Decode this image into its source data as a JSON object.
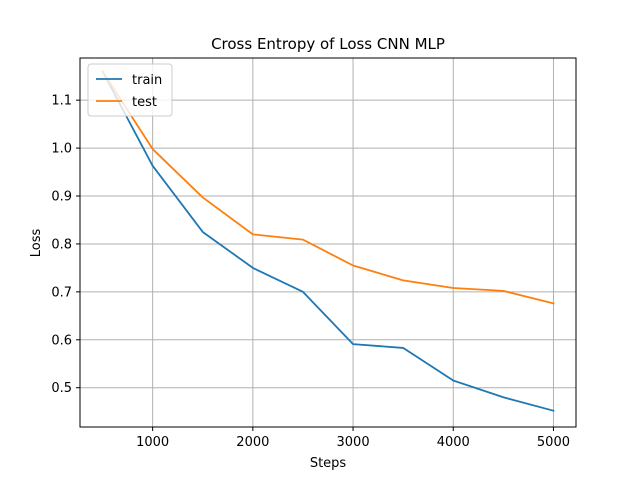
{
  "chart_data": {
    "type": "line",
    "title": "Cross Entropy of Loss CNN MLP",
    "xlabel": "Steps",
    "ylabel": "Loss",
    "x": [
      500,
      1000,
      1500,
      2000,
      2500,
      3000,
      3500,
      4000,
      4500,
      5000
    ],
    "xlim": [
      275,
      5225
    ],
    "ylim": [
      0.418,
      1.188
    ],
    "xticks": [
      {
        "value": 1000,
        "label": "1000"
      },
      {
        "value": 2000,
        "label": "2000"
      },
      {
        "value": 3000,
        "label": "3000"
      },
      {
        "value": 4000,
        "label": "4000"
      },
      {
        "value": 5000,
        "label": "5000"
      }
    ],
    "yticks": [
      {
        "value": 0.5,
        "label": "0.5"
      },
      {
        "value": 0.6,
        "label": "0.6"
      },
      {
        "value": 0.7,
        "label": "0.7"
      },
      {
        "value": 0.8,
        "label": "0.8"
      },
      {
        "value": 0.9,
        "label": "0.9"
      },
      {
        "value": 1.0,
        "label": "1.0"
      },
      {
        "value": 1.1,
        "label": "1.1"
      }
    ],
    "grid": true,
    "legend_position": "top-left",
    "series": [
      {
        "name": "train",
        "color": "#1f77b4",
        "values": [
          1.16,
          0.963,
          0.825,
          0.75,
          0.7,
          0.591,
          0.583,
          0.515,
          0.48,
          0.452
        ]
      },
      {
        "name": "test",
        "color": "#ff7f0e",
        "values": [
          1.16,
          0.998,
          0.897,
          0.82,
          0.809,
          0.755,
          0.724,
          0.708,
          0.702,
          0.676
        ]
      }
    ]
  }
}
